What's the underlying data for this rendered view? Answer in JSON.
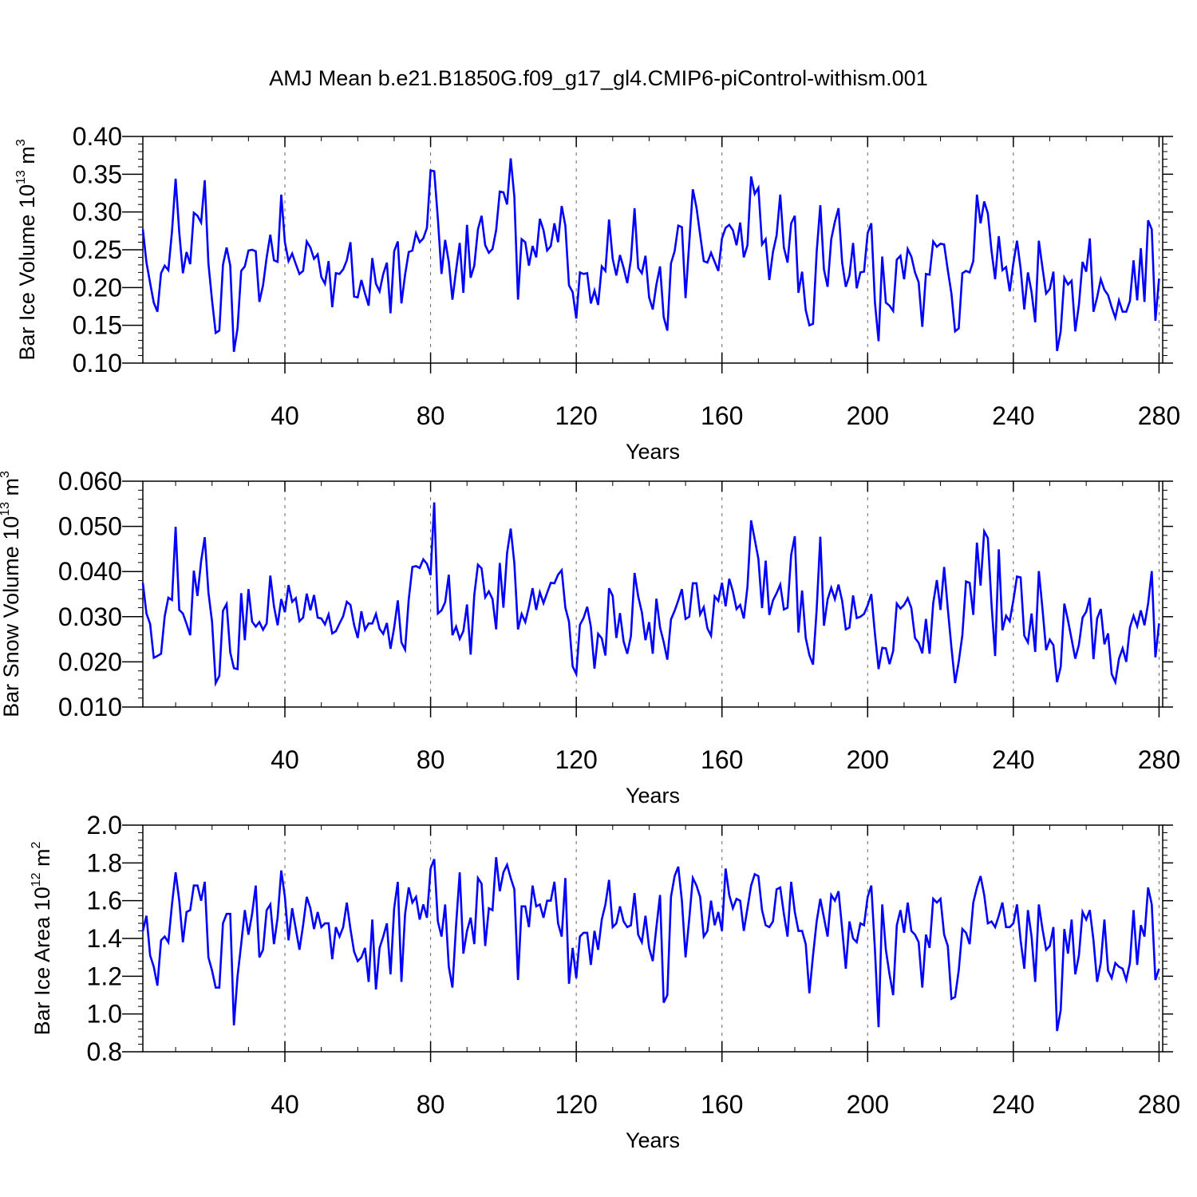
{
  "title": "AMJ Mean b.e21.B1850G.f09_g17_gl4.CMIP6-piControl-withism.001",
  "colors": {
    "series": "#0000ff",
    "axis": "#000000",
    "grid": "#666666"
  },
  "chart_data": [
    {
      "type": "line",
      "xlabel": "Years",
      "ylabel_main": "Bar Ice Volume 10",
      "ylabel_exp": "13",
      "ylabel_unit": " m",
      "ylabel_unit_exp": "3",
      "xlim": [
        1,
        281
      ],
      "ylim": [
        0.1,
        0.4
      ],
      "xticks": [
        40,
        80,
        120,
        160,
        200,
        240,
        280
      ],
      "xtick_labels": [
        "40",
        "80",
        "120",
        "160",
        "200",
        "240",
        "280"
      ],
      "yticks": [
        0.1,
        0.15,
        0.2,
        0.25,
        0.3,
        0.35,
        0.4
      ],
      "ytick_labels": [
        "0.10",
        "0.15",
        "0.20",
        "0.25",
        "0.30",
        "0.35",
        "0.40"
      ],
      "grid": "vertical dashed at 40-year ticks",
      "x_start": 1,
      "values": [
        0.277,
        0.233,
        0.206,
        0.18,
        0.168,
        0.219,
        0.229,
        0.223,
        0.274,
        0.344,
        0.273,
        0.219,
        0.247,
        0.231,
        0.299,
        0.295,
        0.286,
        0.342,
        0.232,
        0.183,
        0.14,
        0.143,
        0.23,
        0.253,
        0.229,
        0.115,
        0.146,
        0.222,
        0.228,
        0.249,
        0.25,
        0.248,
        0.181,
        0.203,
        0.24,
        0.27,
        0.236,
        0.234,
        0.323,
        0.26,
        0.235,
        0.245,
        0.231,
        0.218,
        0.222,
        0.261,
        0.253,
        0.238,
        0.244,
        0.214,
        0.205,
        0.235,
        0.174,
        0.219,
        0.218,
        0.224,
        0.236,
        0.26,
        0.188,
        0.187,
        0.21,
        0.192,
        0.176,
        0.239,
        0.205,
        0.195,
        0.218,
        0.233,
        0.166,
        0.248,
        0.261,
        0.179,
        0.217,
        0.247,
        0.249,
        0.272,
        0.26,
        0.265,
        0.279,
        0.355,
        0.354,
        0.291,
        0.218,
        0.263,
        0.234,
        0.184,
        0.223,
        0.259,
        0.193,
        0.283,
        0.213,
        0.229,
        0.277,
        0.295,
        0.256,
        0.246,
        0.251,
        0.276,
        0.327,
        0.326,
        0.31,
        0.371,
        0.32,
        0.184,
        0.264,
        0.26,
        0.229,
        0.255,
        0.24,
        0.291,
        0.276,
        0.249,
        0.255,
        0.285,
        0.26,
        0.308,
        0.282,
        0.203,
        0.194,
        0.159,
        0.22,
        0.218,
        0.219,
        0.179,
        0.196,
        0.177,
        0.228,
        0.222,
        0.29,
        0.238,
        0.216,
        0.243,
        0.226,
        0.206,
        0.237,
        0.305,
        0.226,
        0.219,
        0.242,
        0.187,
        0.171,
        0.204,
        0.228,
        0.161,
        0.143,
        0.232,
        0.248,
        0.282,
        0.28,
        0.186,
        0.258,
        0.33,
        0.306,
        0.27,
        0.235,
        0.233,
        0.246,
        0.234,
        0.222,
        0.265,
        0.279,
        0.283,
        0.276,
        0.256,
        0.286,
        0.24,
        0.256,
        0.347,
        0.324,
        0.332,
        0.257,
        0.264,
        0.21,
        0.247,
        0.269,
        0.323,
        0.253,
        0.233,
        0.285,
        0.295,
        0.193,
        0.221,
        0.17,
        0.15,
        0.152,
        0.247,
        0.309,
        0.224,
        0.201,
        0.264,
        0.287,
        0.305,
        0.233,
        0.201,
        0.216,
        0.259,
        0.199,
        0.22,
        0.221,
        0.272,
        0.285,
        0.18,
        0.129,
        0.241,
        0.18,
        0.176,
        0.169,
        0.237,
        0.242,
        0.211,
        0.251,
        0.241,
        0.22,
        0.207,
        0.148,
        0.218,
        0.217,
        0.261,
        0.254,
        0.258,
        0.257,
        0.223,
        0.192,
        0.142,
        0.146,
        0.219,
        0.222,
        0.22,
        0.235,
        0.323,
        0.285,
        0.314,
        0.298,
        0.249,
        0.211,
        0.268,
        0.223,
        0.227,
        0.195,
        0.232,
        0.262,
        0.225,
        0.171,
        0.22,
        0.194,
        0.154,
        0.262,
        0.226,
        0.192,
        0.198,
        0.221,
        0.116,
        0.142,
        0.213,
        0.204,
        0.209,
        0.142,
        0.177,
        0.234,
        0.221,
        0.265,
        0.168,
        0.187,
        0.211,
        0.197,
        0.19,
        0.174,
        0.16,
        0.183,
        0.168,
        0.168,
        0.182,
        0.236,
        0.183,
        0.252,
        0.181,
        0.289,
        0.277,
        0.156,
        0.212
      ]
    },
    {
      "type": "line",
      "xlabel": "Years",
      "ylabel_main": "Bar Snow Volume 10",
      "ylabel_exp": "13",
      "ylabel_unit": " m",
      "ylabel_unit_exp": "3",
      "xlim": [
        1,
        281
      ],
      "ylim": [
        0.01,
        0.06
      ],
      "xticks": [
        40,
        80,
        120,
        160,
        200,
        240,
        280
      ],
      "xtick_labels": [
        "40",
        "80",
        "120",
        "160",
        "200",
        "240",
        "280"
      ],
      "yticks": [
        0.01,
        0.02,
        0.03,
        0.04,
        0.05,
        0.06
      ],
      "ytick_labels": [
        "0.010",
        "0.020",
        "0.030",
        "0.040",
        "0.050",
        "0.060"
      ],
      "grid": "vertical dashed at 40-year ticks",
      "x_start": 1,
      "values": [
        0.0375,
        0.0307,
        0.0284,
        0.0209,
        0.0213,
        0.0218,
        0.0301,
        0.0342,
        0.0337,
        0.0499,
        0.0315,
        0.0307,
        0.0284,
        0.0259,
        0.0402,
        0.0346,
        0.0423,
        0.0476,
        0.0354,
        0.0289,
        0.0153,
        0.0169,
        0.0313,
        0.0328,
        0.0221,
        0.0186,
        0.0184,
        0.0352,
        0.0248,
        0.0361,
        0.0289,
        0.0278,
        0.0288,
        0.0271,
        0.0285,
        0.0391,
        0.0323,
        0.0281,
        0.0339,
        0.031,
        0.037,
        0.0333,
        0.0341,
        0.029,
        0.0298,
        0.0351,
        0.0314,
        0.0348,
        0.0298,
        0.0296,
        0.0283,
        0.0305,
        0.0263,
        0.0268,
        0.0285,
        0.0301,
        0.0333,
        0.0326,
        0.0282,
        0.0253,
        0.0312,
        0.0271,
        0.0285,
        0.0285,
        0.0306,
        0.0273,
        0.0262,
        0.0286,
        0.0229,
        0.0276,
        0.0336,
        0.0243,
        0.0227,
        0.0338,
        0.041,
        0.0412,
        0.0408,
        0.0427,
        0.0417,
        0.0392,
        0.0553,
        0.0307,
        0.0314,
        0.0332,
        0.0393,
        0.0259,
        0.0278,
        0.0251,
        0.0268,
        0.0327,
        0.0216,
        0.0348,
        0.0415,
        0.0407,
        0.0343,
        0.0356,
        0.0339,
        0.0272,
        0.0419,
        0.032,
        0.0441,
        0.0495,
        0.0418,
        0.0272,
        0.0306,
        0.0288,
        0.0322,
        0.0363,
        0.0315,
        0.0354,
        0.033,
        0.0353,
        0.0375,
        0.0374,
        0.0393,
        0.0403,
        0.032,
        0.0289,
        0.019,
        0.0173,
        0.0282,
        0.0297,
        0.0322,
        0.0278,
        0.0185,
        0.0262,
        0.0252,
        0.0214,
        0.0363,
        0.0346,
        0.0253,
        0.0308,
        0.0245,
        0.0218,
        0.0257,
        0.0397,
        0.0345,
        0.031,
        0.0248,
        0.0288,
        0.0218,
        0.034,
        0.0276,
        0.0244,
        0.0205,
        0.0294,
        0.0313,
        0.0336,
        0.0361,
        0.0295,
        0.03,
        0.0374,
        0.0374,
        0.0305,
        0.0321,
        0.0274,
        0.0258,
        0.0345,
        0.0335,
        0.0375,
        0.0323,
        0.0384,
        0.0356,
        0.0317,
        0.0326,
        0.0296,
        0.0366,
        0.0513,
        0.0471,
        0.0428,
        0.0319,
        0.0424,
        0.0304,
        0.0336,
        0.0352,
        0.0371,
        0.0316,
        0.032,
        0.0437,
        0.0478,
        0.0265,
        0.0358,
        0.0253,
        0.0215,
        0.0194,
        0.0316,
        0.0477,
        0.028,
        0.0338,
        0.0364,
        0.0339,
        0.0371,
        0.0335,
        0.0272,
        0.0276,
        0.0347,
        0.0297,
        0.03,
        0.0306,
        0.0325,
        0.035,
        0.0262,
        0.0184,
        0.0231,
        0.023,
        0.0195,
        0.0224,
        0.0329,
        0.0318,
        0.0326,
        0.0341,
        0.0319,
        0.0253,
        0.0242,
        0.0219,
        0.0295,
        0.0218,
        0.033,
        0.0381,
        0.0315,
        0.041,
        0.0318,
        0.0232,
        0.0153,
        0.02,
        0.0259,
        0.0378,
        0.0375,
        0.0304,
        0.0464,
        0.0369,
        0.0489,
        0.0474,
        0.0328,
        0.0213,
        0.0449,
        0.027,
        0.0302,
        0.029,
        0.0336,
        0.0389,
        0.0387,
        0.0258,
        0.0243,
        0.0307,
        0.0222,
        0.0401,
        0.0317,
        0.0226,
        0.0249,
        0.0237,
        0.0155,
        0.0189,
        0.0329,
        0.0292,
        0.025,
        0.0207,
        0.0238,
        0.0298,
        0.0311,
        0.0342,
        0.0206,
        0.0296,
        0.0317,
        0.0239,
        0.0263,
        0.0173,
        0.0155,
        0.0207,
        0.023,
        0.02,
        0.0276,
        0.0302,
        0.0279,
        0.0314,
        0.0281,
        0.0329,
        0.0401,
        0.021,
        0.0285
      ]
    },
    {
      "type": "line",
      "xlabel": "Years",
      "ylabel_main": "Bar Ice Area 10",
      "ylabel_exp": "12",
      "ylabel_unit": " m",
      "ylabel_unit_exp": "2",
      "xlim": [
        1,
        281
      ],
      "ylim": [
        0.8,
        2.0
      ],
      "xticks": [
        40,
        80,
        120,
        160,
        200,
        240,
        280
      ],
      "xtick_labels": [
        "40",
        "80",
        "120",
        "160",
        "200",
        "240",
        "280"
      ],
      "yticks": [
        0.8,
        1.0,
        1.2,
        1.4,
        1.6,
        1.8,
        2.0
      ],
      "ytick_labels": [
        "0.8",
        "1.0",
        "1.2",
        "1.4",
        "1.6",
        "1.8",
        "2.0"
      ],
      "grid": "vertical dashed at 40-year ticks",
      "x_start": 1,
      "values": [
        1.44,
        1.52,
        1.31,
        1.25,
        1.15,
        1.39,
        1.41,
        1.38,
        1.58,
        1.75,
        1.6,
        1.38,
        1.54,
        1.55,
        1.68,
        1.68,
        1.6,
        1.7,
        1.3,
        1.23,
        1.14,
        1.14,
        1.48,
        1.53,
        1.53,
        0.94,
        1.2,
        1.37,
        1.55,
        1.42,
        1.53,
        1.68,
        1.3,
        1.34,
        1.55,
        1.58,
        1.37,
        1.51,
        1.76,
        1.62,
        1.39,
        1.56,
        1.45,
        1.34,
        1.47,
        1.62,
        1.56,
        1.45,
        1.54,
        1.46,
        1.48,
        1.48,
        1.29,
        1.46,
        1.41,
        1.46,
        1.59,
        1.45,
        1.33,
        1.28,
        1.3,
        1.35,
        1.17,
        1.5,
        1.13,
        1.35,
        1.41,
        1.48,
        1.21,
        1.56,
        1.7,
        1.17,
        1.53,
        1.67,
        1.59,
        1.62,
        1.5,
        1.58,
        1.51,
        1.77,
        1.82,
        1.49,
        1.41,
        1.58,
        1.25,
        1.14,
        1.47,
        1.75,
        1.32,
        1.44,
        1.51,
        1.37,
        1.72,
        1.69,
        1.36,
        1.56,
        1.55,
        1.83,
        1.65,
        1.75,
        1.79,
        1.72,
        1.66,
        1.18,
        1.57,
        1.57,
        1.46,
        1.68,
        1.57,
        1.58,
        1.51,
        1.6,
        1.6,
        1.7,
        1.48,
        1.41,
        1.72,
        1.16,
        1.35,
        1.19,
        1.41,
        1.43,
        1.43,
        1.26,
        1.44,
        1.34,
        1.5,
        1.58,
        1.71,
        1.46,
        1.48,
        1.57,
        1.49,
        1.46,
        1.47,
        1.64,
        1.42,
        1.38,
        1.52,
        1.35,
        1.28,
        1.46,
        1.63,
        1.06,
        1.1,
        1.62,
        1.73,
        1.78,
        1.6,
        1.3,
        1.5,
        1.72,
        1.68,
        1.62,
        1.41,
        1.44,
        1.6,
        1.47,
        1.54,
        1.44,
        1.77,
        1.63,
        1.56,
        1.61,
        1.6,
        1.44,
        1.56,
        1.68,
        1.74,
        1.73,
        1.55,
        1.47,
        1.46,
        1.49,
        1.66,
        1.67,
        1.53,
        1.41,
        1.7,
        1.54,
        1.44,
        1.44,
        1.37,
        1.11,
        1.31,
        1.49,
        1.61,
        1.51,
        1.41,
        1.63,
        1.6,
        1.65,
        1.45,
        1.24,
        1.49,
        1.4,
        1.38,
        1.48,
        1.47,
        1.62,
        1.68,
        1.34,
        0.93,
        1.58,
        1.34,
        1.21,
        1.1,
        1.47,
        1.55,
        1.43,
        1.59,
        1.44,
        1.42,
        1.38,
        1.14,
        1.42,
        1.35,
        1.61,
        1.59,
        1.61,
        1.42,
        1.36,
        1.08,
        1.09,
        1.23,
        1.45,
        1.43,
        1.37,
        1.59,
        1.67,
        1.73,
        1.63,
        1.48,
        1.49,
        1.46,
        1.52,
        1.59,
        1.46,
        1.46,
        1.48,
        1.58,
        1.39,
        1.24,
        1.55,
        1.41,
        1.17,
        1.58,
        1.45,
        1.34,
        1.36,
        1.46,
        0.91,
        1.02,
        1.45,
        1.32,
        1.5,
        1.21,
        1.31,
        1.54,
        1.5,
        1.55,
        1.39,
        1.17,
        1.27,
        1.5,
        1.23,
        1.19,
        1.27,
        1.25,
        1.24,
        1.18,
        1.27,
        1.55,
        1.26,
        1.47,
        1.41,
        1.67,
        1.58,
        1.18,
        1.24
      ]
    }
  ]
}
